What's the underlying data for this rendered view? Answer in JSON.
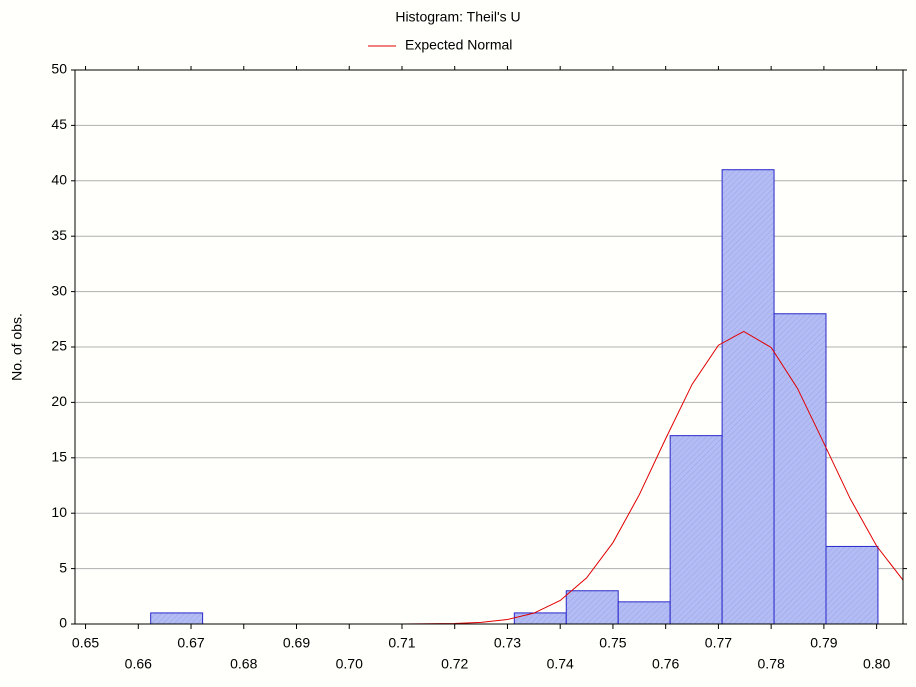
{
  "chart_data": {
    "type": "histogram",
    "title": "Histogram: Theil's U",
    "ylabel": "No. of obs.",
    "bins": [
      0.6525,
      0.66235,
      0.6722,
      0.68205,
      0.6919,
      0.70175,
      0.7116,
      0.72145,
      0.7313,
      0.74115,
      0.751,
      0.76085,
      0.7707,
      0.78055,
      0.7904,
      0.80025
    ],
    "counts": [
      0,
      1,
      0,
      0,
      0,
      0,
      0,
      0,
      1,
      3,
      2,
      17,
      41,
      28,
      7
    ],
    "color": "#b4bcf4",
    "edge_color": "#2828c8",
    "series": [
      {
        "name": "Expected Normal",
        "color": "#e00000",
        "x": [
          0.648,
          0.69,
          0.71,
          0.72,
          0.725,
          0.73,
          0.735,
          0.74,
          0.745,
          0.75,
          0.755,
          0.76,
          0.765,
          0.77,
          0.7748,
          0.78,
          0.785,
          0.79,
          0.795,
          0.8,
          0.805
        ],
        "values": [
          0,
          0,
          0.004,
          0.05,
          0.15,
          0.41,
          0.98,
          2.12,
          4.16,
          7.34,
          11.67,
          16.73,
          21.62,
          25.16,
          26.4,
          24.96,
          21.26,
          16.32,
          11.3,
          7.04,
          3.96
        ]
      }
    ],
    "xlim": [
      0.648,
      0.805
    ],
    "xticks": [
      0.65,
      0.66,
      0.67,
      0.68,
      0.69,
      {
        "value": 0.7,
        "label": "0.70"
      },
      0.71,
      0.72,
      0.73,
      0.74,
      0.75,
      0.76,
      0.77,
      0.78,
      0.79,
      {
        "value": 0.8,
        "label": "0.80"
      }
    ],
    "ylim": [
      0,
      50
    ],
    "yticks": [
      0,
      5,
      10,
      15,
      20,
      25,
      30,
      35,
      40,
      45,
      50
    ],
    "grid": true
  }
}
